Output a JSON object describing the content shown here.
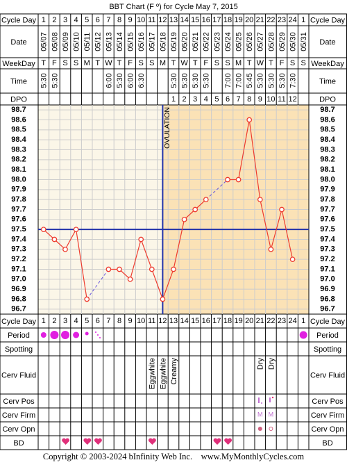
{
  "title": "BBT Chart (F º) for Cycle May 7, 2015",
  "row_labels": {
    "cycle_day": "Cycle Day",
    "date": "Date",
    "weekday": "WeekDay",
    "time": "Time",
    "dpo": "DPO",
    "period": "Period",
    "spotting": "Spotting",
    "cerv_fluid": "Cerv Fluid",
    "cerv_pos": "Cerv Pos",
    "cerv_firm": "Cerv Firm",
    "cerv_opn": "Cerv Opn",
    "bd": "BD"
  },
  "dates": [
    "05/07",
    "05/08",
    "05/09",
    "05/10",
    "05/11",
    "05/12",
    "05/13",
    "05/14",
    "05/15",
    "05/16",
    "05/17",
    "05/18",
    "05/19",
    "05/20",
    "05/21",
    "05/22",
    "05/23",
    "05/24",
    "05/25",
    "05/26",
    "05/27",
    "05/28",
    "05/29",
    "05/30",
    "05/31"
  ],
  "weekdays": [
    "T",
    "F",
    "S",
    "S",
    "M",
    "T",
    "W",
    "T",
    "F",
    "S",
    "S",
    "M",
    "T",
    "W",
    "T",
    "F",
    "S",
    "S",
    "M",
    "T",
    "W",
    "T",
    "F",
    "S",
    "S"
  ],
  "times": [
    "5:30",
    "5:30",
    null,
    null,
    null,
    null,
    "6:00",
    "5:30",
    "6:00",
    "6:30",
    null,
    null,
    "5:30",
    "5:30",
    "5:30",
    "5:30",
    null,
    "7:00",
    "7:00",
    "5:45",
    "5:30",
    "5:30",
    "5:30",
    "7:30",
    null
  ],
  "dpo": [
    null,
    null,
    null,
    null,
    null,
    null,
    null,
    null,
    null,
    null,
    null,
    null,
    1,
    2,
    3,
    4,
    5,
    6,
    7,
    8,
    9,
    10,
    11,
    12,
    null
  ],
  "cerv_fluid": [
    null,
    null,
    null,
    null,
    null,
    null,
    null,
    null,
    null,
    null,
    "Eggwhite",
    "Eggwhite",
    "Creamy",
    null,
    null,
    null,
    null,
    null,
    null,
    null,
    "Dry",
    "Dry",
    null,
    null,
    null
  ],
  "cerv_firm": [
    null,
    null,
    null,
    null,
    null,
    null,
    null,
    null,
    null,
    null,
    null,
    null,
    null,
    null,
    null,
    null,
    null,
    null,
    null,
    null,
    "M",
    "M",
    null,
    null,
    null
  ],
  "chart_data": {
    "type": "line",
    "categories": [
      1,
      2,
      3,
      4,
      5,
      6,
      7,
      8,
      9,
      10,
      11,
      12,
      13,
      14,
      15,
      16,
      17,
      18,
      19,
      20,
      21,
      22,
      23,
      24,
      1
    ],
    "values": [
      97.5,
      97.4,
      97.3,
      97.5,
      96.8,
      null,
      97.1,
      97.1,
      97.0,
      97.4,
      97.1,
      96.8,
      97.1,
      97.6,
      97.7,
      97.8,
      null,
      98.0,
      98.0,
      98.6,
      97.8,
      97.3,
      97.7,
      97.2,
      null
    ],
    "color": "#ee3b2e",
    "coverline": 97.5,
    "ovulation_day": 12,
    "annotation": "OVULATION",
    "ylim": [
      96.65,
      98.75
    ],
    "yticks": [
      98.7,
      98.6,
      98.5,
      98.4,
      98.3,
      98.2,
      98.1,
      {
        "value": 98,
        "label": "98.0"
      },
      97.9,
      97.8,
      97.7,
      97.6,
      97.5,
      97.4,
      97.3,
      97.2,
      97.1,
      {
        "value": 97,
        "label": "97.0"
      },
      96.9,
      96.8,
      96.7
    ],
    "grid": true
  },
  "copyright": "Copyright © 2003-2024 bInfinity Web Inc.    www.MyMonthlyCycles.com"
}
